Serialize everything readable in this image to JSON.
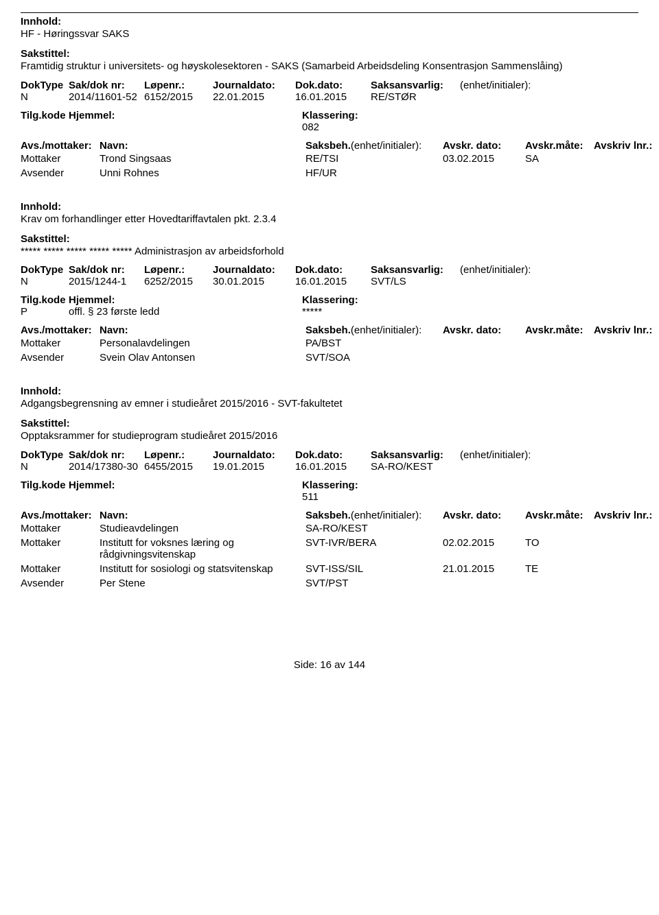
{
  "page_bg": "#ffffff",
  "text_color": "#000000",
  "font_family": "Arial, Helvetica, sans-serif",
  "base_font_size_pt": 15,
  "line_color": "#000000",
  "labels": {
    "innhold": "Innhold:",
    "sakstittel": "Sakstittel:",
    "doktype": "DokType",
    "sakdoknr": "Sak/dok nr:",
    "lopenr": "Løpenr.:",
    "journaldato": "Journaldato:",
    "dokdato": "Dok.dato:",
    "saksansvarlig": "Saksansvarlig:",
    "enhet_initialer": "(enhet/initialer):",
    "tilgkode": "Tilg.kode",
    "hjemmel": "Hjemmel:",
    "klassering": "Klassering:",
    "avs_mottaker": "Avs./mottaker:",
    "navn": "Navn:",
    "saksbeh": "Saksbeh.",
    "saksbeh_eh": "(enhet/initialer):",
    "avskr_dato": "Avskr. dato:",
    "avskr_mate": "Avskr.måte:",
    "avskriv_lnr": "Avskriv lnr.:",
    "mottaker": "Mottaker",
    "avsender": "Avsender"
  },
  "entries": [
    {
      "innhold": "HF - Høringssvar SAKS",
      "sakstittel": "Framtidig struktur i universitets- og høyskolesektoren - SAKS (Samarbeid Arbeidsdeling Konsentrasjon Sammenslåing)",
      "doktype": "N",
      "sakdoknr": "2014/11601-52",
      "lopenr": "6152/2015",
      "journaldato": "22.01.2015",
      "dokdato": "16.01.2015",
      "saksansvarlig": "RE/STØR",
      "tilgkode": "",
      "hjemmel": "",
      "klassering": "082",
      "parties_header": true,
      "parties": [
        {
          "role": "Mottaker",
          "navn": "Trond Singsaas",
          "saksbeh": "RE/TSI",
          "avskr_dato": "03.02.2015",
          "avskr_mate": "SA",
          "lnr": ""
        },
        {
          "role": "Avsender",
          "navn": "Unni Rohnes",
          "saksbeh": "HF/UR",
          "avskr_dato": "",
          "avskr_mate": "",
          "lnr": ""
        }
      ]
    },
    {
      "innhold": "Krav om forhandlinger etter Hovedtariffavtalen pkt. 2.3.4",
      "sakstittel": "***** ***** ***** ***** ***** Administrasjon av arbeidsforhold",
      "doktype": "N",
      "sakdoknr": "2015/1244-1",
      "lopenr": "6252/2015",
      "journaldato": "30.01.2015",
      "dokdato": "16.01.2015",
      "saksansvarlig": "SVT/LS",
      "tilgkode": "P",
      "hjemmel": "offl. § 23 første ledd",
      "klassering": "*****",
      "parties_header": true,
      "parties": [
        {
          "role": "Mottaker",
          "navn": "Personalavdelingen",
          "saksbeh": "PA/BST",
          "avskr_dato": "",
          "avskr_mate": "",
          "lnr": ""
        },
        {
          "role": "Avsender",
          "navn": "Svein Olav Antonsen",
          "saksbeh": "SVT/SOA",
          "avskr_dato": "",
          "avskr_mate": "",
          "lnr": ""
        }
      ]
    },
    {
      "innhold": "Adgangsbegrensning av emner i studieåret 2015/2016 - SVT-fakultetet",
      "sakstittel": "Opptaksrammer for studieprogram studieåret 2015/2016",
      "doktype": "N",
      "sakdoknr": "2014/17380-30",
      "lopenr": "6455/2015",
      "journaldato": "19.01.2015",
      "dokdato": "16.01.2015",
      "saksansvarlig": "SA-RO/KEST",
      "tilgkode": "",
      "hjemmel": "",
      "klassering": "511",
      "parties_header": true,
      "parties": [
        {
          "role": "Mottaker",
          "navn": "Studieavdelingen",
          "saksbeh": "SA-RO/KEST",
          "avskr_dato": "",
          "avskr_mate": "",
          "lnr": ""
        },
        {
          "role": "Mottaker",
          "navn": "Institutt for voksnes læring og rådgivningsvitenskap",
          "saksbeh": "SVT-IVR/BERA",
          "avskr_dato": "02.02.2015",
          "avskr_mate": "TO",
          "lnr": ""
        },
        {
          "role": "Mottaker",
          "navn": "Institutt for sosiologi og statsvitenskap",
          "saksbeh": "SVT-ISS/SIL",
          "avskr_dato": "21.01.2015",
          "avskr_mate": "TE",
          "lnr": ""
        },
        {
          "role": "Avsender",
          "navn": "Per Stene",
          "saksbeh": "SVT/PST",
          "avskr_dato": "",
          "avskr_mate": "",
          "lnr": ""
        }
      ]
    }
  ],
  "footer": {
    "prefix": "Side:",
    "page": "16",
    "sep": "av",
    "total": "144"
  }
}
